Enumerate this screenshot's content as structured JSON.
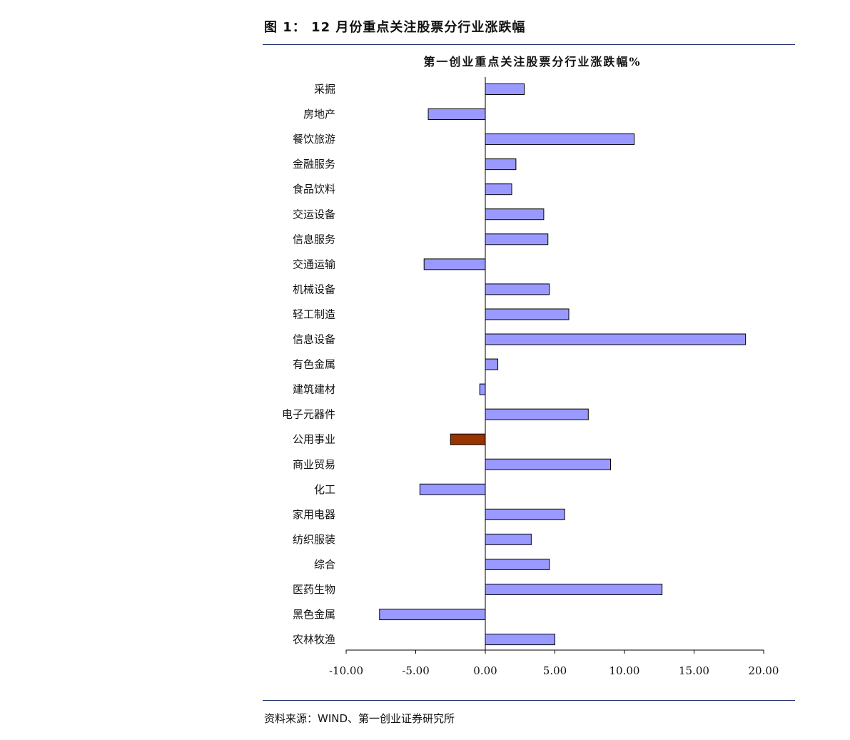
{
  "figure_caption": "图 1： 12 月份重点关注股票分行业涨跌幅",
  "source_note": "资料来源：WIND、第一创业证券研究所",
  "colors": {
    "bar_default": "#9999ff",
    "bar_highlight": "#993300",
    "bar_stroke": "#000000",
    "rule": "#1f2f6e"
  },
  "chart_data": {
    "type": "bar",
    "orientation": "horizontal",
    "title": "第一创业重点关注股票分行业涨跌幅%",
    "categories": [
      "采掘",
      "房地产",
      "餐饮旅游",
      "金融服务",
      "食品饮料",
      "交运设备",
      "信息服务",
      "交通运输",
      "机械设备",
      "轻工制造",
      "信息设备",
      "有色金属",
      "建筑建材",
      "电子元器件",
      "公用事业",
      "商业贸易",
      "化工",
      "家用电器",
      "纺织服装",
      "综合",
      "医药生物",
      "黑色金属",
      "农林牧渔"
    ],
    "values": [
      2.8,
      -4.1,
      10.7,
      2.2,
      1.9,
      4.2,
      4.5,
      -4.4,
      4.6,
      6.0,
      18.7,
      0.9,
      -0.4,
      7.4,
      -2.5,
      9.0,
      -4.7,
      5.7,
      3.3,
      4.6,
      12.7,
      -7.6,
      5.0
    ],
    "highlight_category": "公用事业",
    "xlim": [
      -10,
      20
    ],
    "xticks": [
      -10,
      -5,
      0,
      5,
      10,
      15,
      20
    ],
    "xtick_labels": [
      "-10.00",
      "-5.00",
      "0.00",
      "5.00",
      "10.00",
      "15.00",
      "20.00"
    ],
    "grid": false,
    "legend": "none"
  }
}
